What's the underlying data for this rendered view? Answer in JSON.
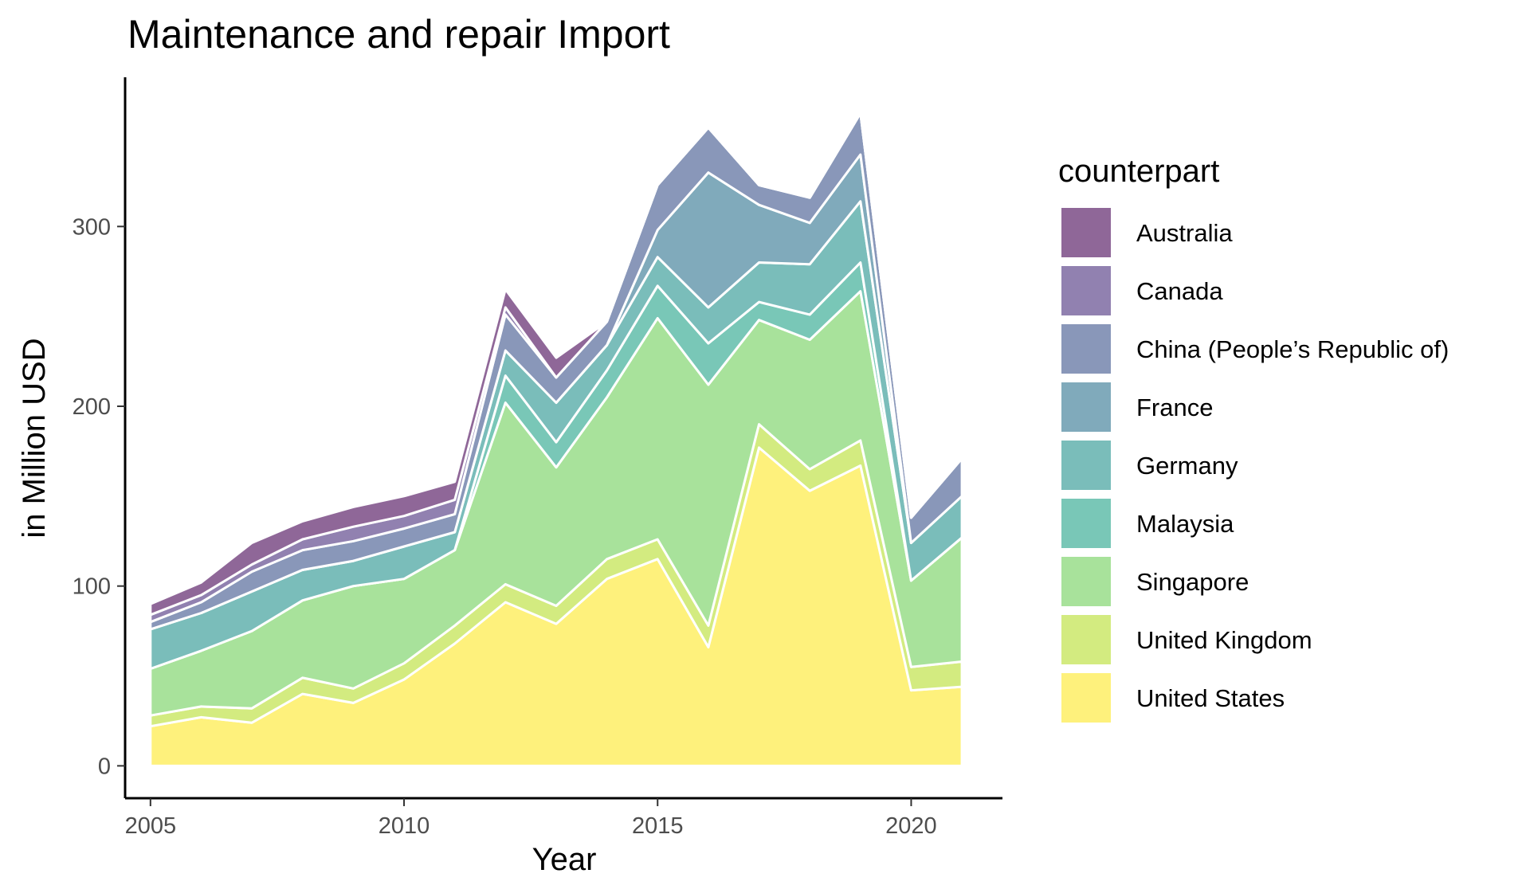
{
  "chart_data": {
    "type": "area",
    "stacked": true,
    "title": "Maintenance and repair Import",
    "xlabel": "Year",
    "ylabel": "in Million USD",
    "xlim": [
      2004.5,
      2021.8
    ],
    "ylim": [
      -18,
      383
    ],
    "xticks": [
      "2005",
      "2010",
      "2015",
      "2020"
    ],
    "yticks": [
      "0",
      "100",
      "200",
      "300"
    ],
    "grid": false,
    "legend": {
      "title": "counterpart",
      "position": "right"
    },
    "x": [
      2005,
      2006,
      2007,
      2008,
      2009,
      2010,
      2011,
      2012,
      2013,
      2014,
      2015,
      2016,
      2017,
      2018,
      2019,
      2020,
      2021
    ],
    "series": [
      {
        "name": "United States",
        "color": "#fde725",
        "values": [
          22,
          27,
          24,
          40,
          35,
          48,
          68,
          91,
          79,
          104,
          115,
          66,
          177,
          153,
          167,
          42,
          44
        ]
      },
      {
        "name": "United Kingdom",
        "color": "#b5de2b",
        "values": [
          6,
          6,
          8,
          9,
          8,
          9,
          10,
          10,
          10,
          11,
          11,
          12,
          13,
          12,
          14,
          13,
          14
        ]
      },
      {
        "name": "Singapore",
        "color": "#6ece58",
        "values": [
          26,
          31,
          43,
          43,
          57,
          47,
          42,
          101,
          77,
          90,
          123,
          134,
          58,
          72,
          83,
          48,
          69
        ]
      },
      {
        "name": "Malaysia",
        "color": "#1fa187",
        "values": [
          0,
          0,
          0,
          0,
          0,
          0,
          0,
          15,
          14,
          15,
          18,
          23,
          10,
          14,
          16,
          0,
          0
        ]
      },
      {
        "name": "Germany",
        "color": "#21918c",
        "values": [
          22,
          21,
          22,
          17,
          14,
          18,
          10,
          14,
          22,
          14,
          16,
          20,
          22,
          28,
          34,
          21,
          23
        ]
      },
      {
        "name": "France",
        "color": "#2c728e",
        "values": [
          0,
          0,
          0,
          0,
          0,
          0,
          0,
          0,
          0,
          0,
          15,
          75,
          32,
          23,
          26,
          0,
          0
        ]
      },
      {
        "name": "China (People’s Republic of)",
        "color": "#3b528b",
        "values": [
          4,
          6,
          11,
          11,
          11,
          10,
          10,
          20,
          14,
          13,
          25,
          25,
          11,
          14,
          23,
          14,
          21
        ]
      },
      {
        "name": "Canada",
        "color": "#472d7b",
        "values": [
          4,
          4,
          4,
          6,
          8,
          7,
          8,
          4,
          0,
          0,
          0,
          0,
          0,
          0,
          0,
          0,
          0
        ]
      },
      {
        "name": "Australia",
        "color": "#440154",
        "values": [
          6,
          7,
          12,
          10,
          11,
          11,
          10,
          10,
          11,
          0,
          0,
          0,
          0,
          0,
          0,
          0,
          0
        ]
      }
    ]
  }
}
